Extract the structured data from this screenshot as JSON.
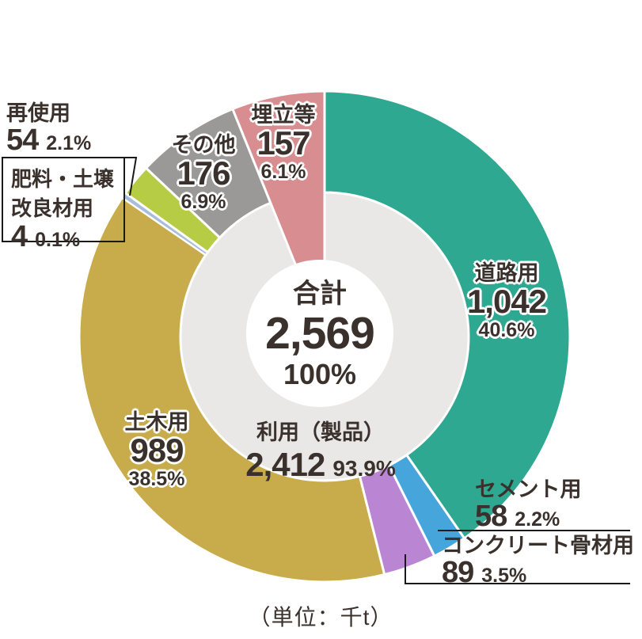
{
  "caption": "（単位：千t）",
  "center": {
    "total_label": "合計",
    "total_value": "2,569",
    "total_percent": "100%",
    "utilized_label": "利用（製品）",
    "utilized_value": "2,412",
    "utilized_percent": "93.9%"
  },
  "colors": {
    "hole": "#e9e8e7",
    "center_circle": "#ffffff",
    "text": "#3a312d",
    "leader": "#1a1a1a"
  },
  "chart_data": {
    "type": "pie",
    "subtype": "donut",
    "title": "",
    "unit": "千t",
    "total": 2569,
    "legend_position": "on-chart",
    "segments": [
      {
        "label": "道路用",
        "value": 1042,
        "display": "1,042",
        "percent": "40.6%",
        "color": "#2ea890",
        "style": "ring"
      },
      {
        "label": "セメント用",
        "value": 58,
        "display": "58",
        "percent": "2.2%",
        "color": "#46a5da",
        "style": "ring"
      },
      {
        "label": "コンクリート骨材用",
        "value": 89,
        "display": "89",
        "percent": "3.5%",
        "color": "#ba85d2",
        "style": "ring"
      },
      {
        "label": "土木用",
        "value": 989,
        "display": "989",
        "percent": "38.5%",
        "color": "#c8ab4a",
        "style": "ring"
      },
      {
        "label": "肥料・土壌改良材用",
        "value": 4,
        "display": "4",
        "percent": "0.1%",
        "color": "#a8bcdb",
        "style": "ring"
      },
      {
        "label": "再使用",
        "value": 54,
        "display": "54",
        "percent": "2.1%",
        "color": "#b6cc44",
        "style": "ring"
      },
      {
        "label": "その他",
        "value": 176,
        "display": "176",
        "percent": "6.9%",
        "color": "#9b9998",
        "style": "ring"
      },
      {
        "label": "埋立等",
        "value": 157,
        "display": "157",
        "percent": "6.1%",
        "color": "#d88e91",
        "style": "wedge"
      }
    ],
    "annotations": {
      "utilized_products": {
        "label": "利用（製品）",
        "display": "2,412",
        "percent": "93.9%"
      }
    }
  }
}
